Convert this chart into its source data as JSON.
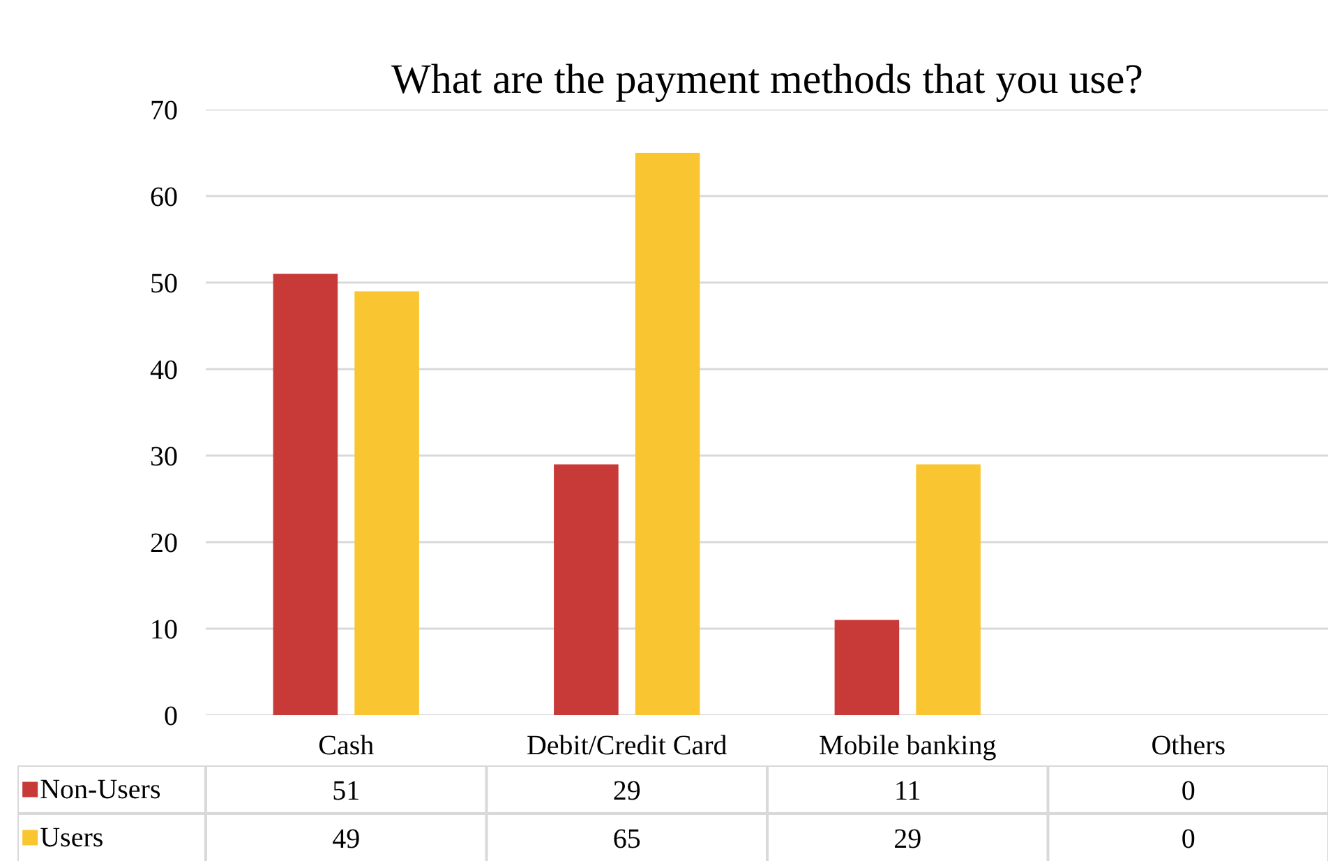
{
  "chart_data": {
    "type": "bar",
    "title": "What are the payment methods that you use?",
    "categories": [
      "Cash",
      "Debit/Credit Card",
      "Mobile banking",
      "Others"
    ],
    "series": [
      {
        "name": "Non-Users",
        "color": "#c83a37",
        "values": [
          51,
          29,
          11,
          0
        ]
      },
      {
        "name": "Users",
        "color": "#f9c531",
        "values": [
          49,
          65,
          29,
          0
        ]
      }
    ],
    "ylim": [
      0,
      70
    ],
    "yticks": [
      0,
      10,
      20,
      30,
      40,
      50,
      60,
      70
    ],
    "grid": "y",
    "legend": "bottom",
    "data_labels": true
  }
}
